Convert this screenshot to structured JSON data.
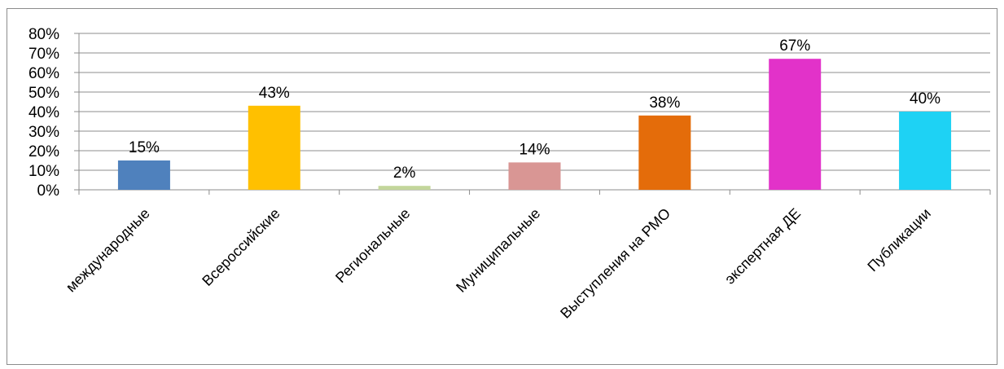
{
  "chart_data": {
    "type": "bar",
    "categories": [
      "международные",
      "Всероссийские",
      "Региональные",
      "Муниципальные",
      "Выступления на РМО",
      "экспертная ДЕ",
      "Публикации"
    ],
    "values": [
      15,
      43,
      2,
      14,
      38,
      67,
      40
    ],
    "data_labels": [
      "15%",
      "43%",
      "2%",
      "14%",
      "38%",
      "67%",
      "40%"
    ],
    "colors": [
      "#4f81bd",
      "#ffc000",
      "#c3d69b",
      "#d99694",
      "#e46c0a",
      "#e232c9",
      "#1ed2f4"
    ],
    "ylim": [
      0,
      80
    ],
    "yticks": [
      0,
      10,
      20,
      30,
      40,
      50,
      60,
      70,
      80
    ],
    "ytick_labels": [
      "0%",
      "10%",
      "20%",
      "30%",
      "40%",
      "50%",
      "60%",
      "70%",
      "80%"
    ],
    "grid": true,
    "title": "",
    "xlabel": "",
    "ylabel": ""
  }
}
